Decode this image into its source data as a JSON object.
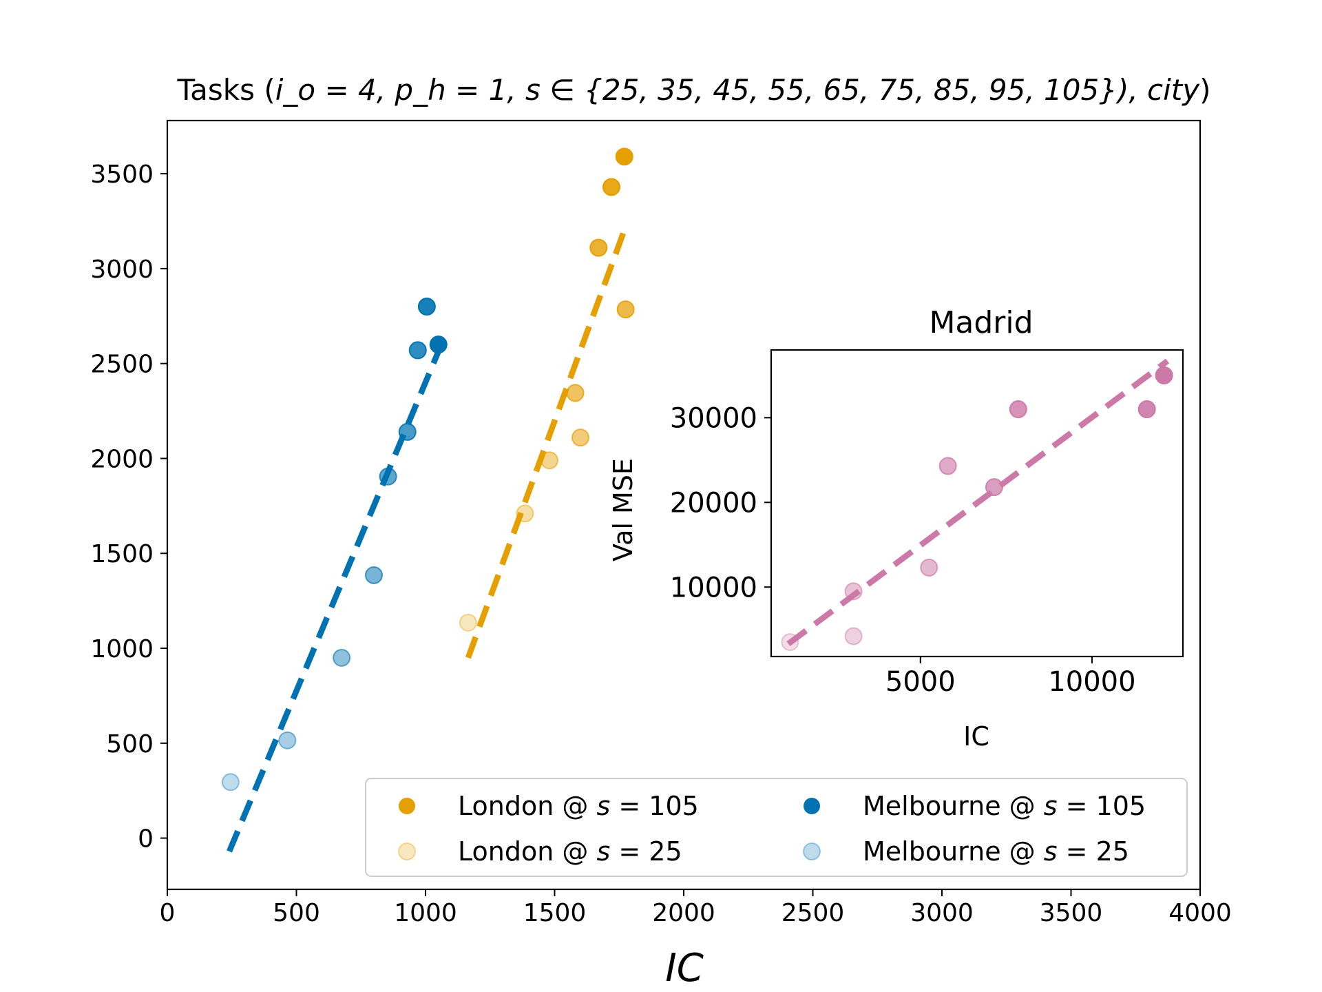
{
  "chart_data": [
    {
      "type": "scatter",
      "title_prefix": "Tasks (",
      "title_math": "i_o = 4, p_h = 1, s ∈ {25, 35, 45, 55, 65, 75, 85, 95, 105}), city",
      "title_suffix": ")",
      "xlabel": "IC",
      "ylabel": "",
      "xlim": [
        0,
        4000
      ],
      "ylim": [
        -270,
        3780
      ],
      "xticks": [
        "0",
        "500",
        "1000",
        "1500",
        "2000",
        "2500",
        "3000",
        "3500",
        "4000"
      ],
      "yticks": [
        "0",
        "500",
        "1000",
        "1500",
        "2000",
        "2500",
        "3000",
        "3500"
      ],
      "series": [
        {
          "name": "London",
          "color": "#e69f00",
          "points": [
            {
              "x": 1165,
              "y": 1135,
              "s": 25
            },
            {
              "x": 1385,
              "y": 1710,
              "s": 35
            },
            {
              "x": 1480,
              "y": 1990,
              "s": 45
            },
            {
              "x": 1600,
              "y": 2110,
              "s": 55
            },
            {
              "x": 1580,
              "y": 2345,
              "s": 65
            },
            {
              "x": 1775,
              "y": 2785,
              "s": 75
            },
            {
              "x": 1670,
              "y": 3110,
              "s": 85
            },
            {
              "x": 1720,
              "y": 3430,
              "s": 95
            },
            {
              "x": 1770,
              "y": 3590,
              "s": 105
            }
          ],
          "fit": [
            [
              1165,
              950
            ],
            [
              1780,
              3240
            ]
          ]
        },
        {
          "name": "Melbourne",
          "color": "#0072b2",
          "points": [
            {
              "x": 245,
              "y": 295,
              "s": 25
            },
            {
              "x": 465,
              "y": 515,
              "s": 35
            },
            {
              "x": 675,
              "y": 950,
              "s": 45
            },
            {
              "x": 800,
              "y": 1385,
              "s": 55
            },
            {
              "x": 855,
              "y": 1905,
              "s": 65
            },
            {
              "x": 930,
              "y": 2140,
              "s": 75
            },
            {
              "x": 970,
              "y": 2570,
              "s": 85
            },
            {
              "x": 1005,
              "y": 2800,
              "s": 95
            },
            {
              "x": 1050,
              "y": 2600,
              "s": 105
            }
          ],
          "fit": [
            [
              240,
              -70
            ],
            [
              1055,
              2580
            ]
          ]
        }
      ],
      "legend": {
        "placement": "lower right",
        "entries": [
          {
            "label_city": "London @ ",
            "label_var": "s",
            "label_val": " = 105",
            "color": "#e69f00",
            "s": 105
          },
          {
            "label_city": "Melbourne @ ",
            "label_var": "s",
            "label_val": " = 105",
            "color": "#0072b2",
            "s": 105
          },
          {
            "label_city": "London @ ",
            "label_var": "s",
            "label_val": " = 25",
            "color": "#e69f00",
            "s": 25
          },
          {
            "label_city": "Melbourne @ ",
            "label_var": "s",
            "label_val": " = 25",
            "color": "#0072b2",
            "s": 25
          }
        ]
      }
    },
    {
      "type": "scatter",
      "title": "Madrid",
      "xlabel": "IC",
      "ylabel": "Val MSE",
      "xlim": [
        650,
        12650
      ],
      "ylim": [
        1800,
        38000
      ],
      "xticks": [
        "5000",
        "10000"
      ],
      "xtick_values": [
        5000,
        10000
      ],
      "yticks": [
        "10000",
        "20000",
        "30000"
      ],
      "ytick_values": [
        10000,
        20000,
        30000
      ],
      "series": [
        {
          "name": "Madrid",
          "color": "#cc79a7",
          "points": [
            {
              "x": 1200,
              "y": 3500,
              "s": 25
            },
            {
              "x": 3050,
              "y": 4200,
              "s": 35
            },
            {
              "x": 3050,
              "y": 9500,
              "s": 45
            },
            {
              "x": 5250,
              "y": 12300,
              "s": 55
            },
            {
              "x": 5800,
              "y": 24300,
              "s": 65
            },
            {
              "x": 7150,
              "y": 21800,
              "s": 75
            },
            {
              "x": 7850,
              "y": 31000,
              "s": 85
            },
            {
              "x": 11600,
              "y": 31000,
              "s": 95
            },
            {
              "x": 12100,
              "y": 35000,
              "s": 105
            }
          ],
          "fit": [
            [
              1150,
              3300
            ],
            [
              12200,
              36700
            ]
          ]
        }
      ]
    }
  ]
}
